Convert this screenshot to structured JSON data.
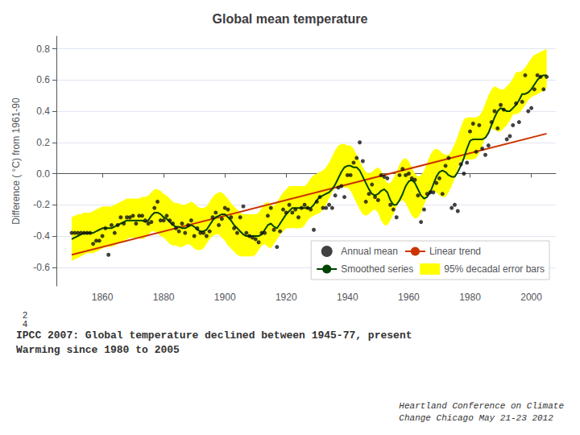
{
  "chart_data": {
    "type": "line",
    "title": "Global mean temperature",
    "ylabel": "Difference ( °C) from 1961-90",
    "xlim": [
      1845,
      2008
    ],
    "ylim": [
      -0.72,
      0.88
    ],
    "xticks": [
      1860,
      1880,
      1900,
      1920,
      1940,
      1960,
      1980,
      2000
    ],
    "yticks": [
      -0.6,
      -0.4,
      -0.2,
      {
        "value": 0,
        "label": "0.0"
      },
      0.2,
      0.4,
      0.6,
      0.8
    ],
    "grid": true,
    "legend": "lower right",
    "annotations": [
      {
        "text": "2\n4"
      },
      {
        "text": "IPCC 2007: Global temperature declined between 1945-77, present\nWarming since 1980 to 2005"
      },
      {
        "text": "Heartland Conference on Climate\nChange Chicago May 21-23 2012"
      }
    ],
    "x": [
      1850,
      1851,
      1852,
      1853,
      1854,
      1855,
      1856,
      1857,
      1858,
      1859,
      1860,
      1861,
      1862,
      1863,
      1864,
      1865,
      1866,
      1867,
      1868,
      1869,
      1870,
      1871,
      1872,
      1873,
      1874,
      1875,
      1876,
      1877,
      1878,
      1879,
      1880,
      1881,
      1882,
      1883,
      1884,
      1885,
      1886,
      1887,
      1888,
      1889,
      1890,
      1891,
      1892,
      1893,
      1894,
      1895,
      1896,
      1897,
      1898,
      1899,
      1900,
      1901,
      1902,
      1903,
      1904,
      1905,
      1906,
      1907,
      1908,
      1909,
      1910,
      1911,
      1912,
      1913,
      1914,
      1915,
      1916,
      1917,
      1918,
      1919,
      1920,
      1921,
      1922,
      1923,
      1924,
      1925,
      1926,
      1927,
      1928,
      1929,
      1930,
      1931,
      1932,
      1933,
      1934,
      1935,
      1936,
      1937,
      1938,
      1939,
      1940,
      1941,
      1942,
      1943,
      1944,
      1945,
      1946,
      1947,
      1948,
      1949,
      1950,
      1951,
      1952,
      1953,
      1954,
      1955,
      1956,
      1957,
      1958,
      1959,
      1960,
      1961,
      1962,
      1963,
      1964,
      1965,
      1966,
      1967,
      1968,
      1969,
      1970,
      1971,
      1972,
      1973,
      1974,
      1975,
      1976,
      1977,
      1978,
      1979,
      1980,
      1981,
      1982,
      1983,
      1984,
      1985,
      1986,
      1987,
      1988,
      1989,
      1990,
      1991,
      1992,
      1993,
      1994,
      1995,
      1996,
      1997,
      1998,
      1999,
      2000,
      2001,
      2002,
      2003,
      2004,
      2005
    ],
    "series": [
      {
        "name": "Annual mean",
        "type": "scatter",
        "marker": "circle",
        "color": "#111111",
        "values": [
          -0.38,
          -0.38,
          -0.38,
          -0.38,
          -0.38,
          -0.38,
          -0.38,
          -0.45,
          -0.43,
          -0.43,
          -0.4,
          -0.35,
          -0.52,
          -0.33,
          -0.38,
          -0.33,
          -0.28,
          -0.32,
          -0.28,
          -0.28,
          -0.27,
          -0.32,
          -0.27,
          -0.27,
          -0.3,
          -0.32,
          -0.31,
          -0.22,
          -0.18,
          -0.3,
          -0.3,
          -0.27,
          -0.3,
          -0.32,
          -0.35,
          -0.37,
          -0.32,
          -0.38,
          -0.33,
          -0.3,
          -0.4,
          -0.35,
          -0.38,
          -0.38,
          -0.4,
          -0.37,
          -0.28,
          -0.25,
          -0.33,
          -0.29,
          -0.22,
          -0.23,
          -0.28,
          -0.35,
          -0.38,
          -0.28,
          -0.21,
          -0.38,
          -0.4,
          -0.41,
          -0.42,
          -0.44,
          -0.38,
          -0.38,
          -0.27,
          -0.22,
          -0.36,
          -0.47,
          -0.37,
          -0.23,
          -0.25,
          -0.2,
          -0.25,
          -0.23,
          -0.28,
          -0.22,
          -0.2,
          -0.22,
          -0.23,
          -0.36,
          -0.18,
          -0.15,
          -0.22,
          -0.22,
          -0.2,
          -0.22,
          -0.14,
          -0.09,
          -0.08,
          -0.15,
          -0.01,
          -0.01,
          0.07,
          0.1,
          0.2,
          0.08,
          -0.18,
          -0.13,
          -0.07,
          -0.15,
          -0.17,
          -0.01,
          -0.02,
          -0.03,
          -0.2,
          -0.23,
          -0.28,
          -0.01,
          0.03,
          -0.01,
          0.0,
          -0.03,
          -0.04,
          -0.14,
          -0.31,
          -0.23,
          -0.13,
          -0.12,
          -0.12,
          -0.06,
          -0.03,
          -0.13,
          0.05,
          0.1,
          -0.22,
          -0.2,
          -0.24,
          0.06,
          0.0,
          0.07,
          0.27,
          0.32,
          0.14,
          0.31,
          0.16,
          0.12,
          0.18,
          0.33,
          0.4,
          0.29,
          0.44,
          0.41,
          0.22,
          0.24,
          0.31,
          0.45,
          0.33,
          0.46,
          0.63,
          0.4,
          0.42,
          0.54,
          0.63,
          0.62,
          0.54,
          0.62
        ]
      },
      {
        "name": "Linear trend",
        "type": "line",
        "line_style": "solid",
        "color": "#cc3300",
        "x": [
          1850,
          2005
        ],
        "values": [
          -0.5204,
          0.2562
        ]
      },
      {
        "name": "Smoothed series",
        "type": "line",
        "line_style": "solid",
        "color": "#004400",
        "values": [
          -0.42,
          -0.41,
          -0.4,
          -0.39,
          -0.38,
          -0.38,
          -0.38,
          -0.38,
          -0.37,
          -0.36,
          -0.35,
          -0.35,
          -0.35,
          -0.35,
          -0.34,
          -0.33,
          -0.32,
          -0.31,
          -0.3,
          -0.3,
          -0.3,
          -0.3,
          -0.3,
          -0.3,
          -0.31,
          -0.3,
          -0.27,
          -0.25,
          -0.25,
          -0.26,
          -0.28,
          -0.29,
          -0.31,
          -0.33,
          -0.34,
          -0.34,
          -0.35,
          -0.35,
          -0.34,
          -0.33,
          -0.34,
          -0.36,
          -0.37,
          -0.37,
          -0.36,
          -0.33,
          -0.3,
          -0.28,
          -0.27,
          -0.26,
          -0.26,
          -0.28,
          -0.3,
          -0.33,
          -0.35,
          -0.37,
          -0.39,
          -0.4,
          -0.4,
          -0.4,
          -0.4,
          -0.4,
          -0.39,
          -0.36,
          -0.33,
          -0.32,
          -0.34,
          -0.35,
          -0.32,
          -0.29,
          -0.26,
          -0.24,
          -0.22,
          -0.22,
          -0.22,
          -0.22,
          -0.22,
          -0.22,
          -0.22,
          -0.2,
          -0.17,
          -0.15,
          -0.14,
          -0.13,
          -0.12,
          -0.1,
          -0.07,
          -0.03,
          0.01,
          0.04,
          0.05,
          0.05,
          0.04,
          0.04,
          0.02,
          -0.02,
          -0.06,
          -0.1,
          -0.13,
          -0.14,
          -0.13,
          -0.11,
          -0.1,
          -0.12,
          -0.17,
          -0.2,
          -0.2,
          -0.17,
          -0.13,
          -0.08,
          -0.05,
          -0.04,
          -0.06,
          -0.1,
          -0.14,
          -0.16,
          -0.15,
          -0.12,
          -0.07,
          -0.02,
          0.01,
          0.02,
          0.01,
          -0.01,
          -0.02,
          -0.02,
          0.01,
          0.05,
          0.1,
          0.16,
          0.21,
          0.22,
          0.22,
          0.22,
          0.22,
          0.23,
          0.26,
          0.31,
          0.36,
          0.4,
          0.42,
          0.41,
          0.4,
          0.4,
          0.42,
          0.44,
          0.47,
          0.51,
          0.51,
          0.52,
          0.54,
          0.57,
          0.6,
          0.62,
          0.63,
          0.63
        ]
      },
      {
        "name": "95% decadal error bars",
        "type": "band",
        "color": "#ffff00",
        "upper": [
          -0.28,
          -0.27,
          -0.26,
          -0.26,
          -0.25,
          -0.25,
          -0.25,
          -0.24,
          -0.23,
          -0.22,
          -0.21,
          -0.21,
          -0.21,
          -0.21,
          -0.2,
          -0.19,
          -0.18,
          -0.17,
          -0.16,
          -0.16,
          -0.16,
          -0.16,
          -0.16,
          -0.15,
          -0.15,
          -0.14,
          -0.12,
          -0.1,
          -0.1,
          -0.11,
          -0.13,
          -0.14,
          -0.16,
          -0.18,
          -0.19,
          -0.19,
          -0.2,
          -0.2,
          -0.19,
          -0.18,
          -0.19,
          -0.21,
          -0.22,
          -0.22,
          -0.21,
          -0.18,
          -0.15,
          -0.13,
          -0.12,
          -0.12,
          -0.14,
          -0.16,
          -0.19,
          -0.21,
          -0.23,
          -0.25,
          -0.26,
          -0.26,
          -0.26,
          -0.26,
          -0.26,
          -0.25,
          -0.22,
          -0.19,
          -0.18,
          -0.2,
          -0.21,
          -0.18,
          -0.15,
          -0.12,
          -0.1,
          -0.08,
          -0.08,
          -0.08,
          -0.08,
          -0.08,
          -0.08,
          -0.06,
          -0.03,
          -0.01,
          0.0,
          0.01,
          0.02,
          0.04,
          0.07,
          0.11,
          0.15,
          0.18,
          0.19,
          0.19,
          0.18,
          0.18,
          0.16,
          0.12,
          0.08,
          0.04,
          0.01,
          0.0,
          0.01,
          0.03,
          0.04,
          0.02,
          -0.03,
          -0.06,
          -0.06,
          -0.03,
          0.01,
          0.06,
          0.09,
          0.1,
          0.08,
          0.04,
          0.0,
          -0.02,
          -0.01,
          0.02,
          0.07,
          0.12,
          0.15,
          0.16,
          0.15,
          0.13,
          0.12,
          0.12,
          0.15,
          0.19,
          0.24,
          0.3,
          0.35,
          0.36,
          0.36,
          0.36,
          0.36,
          0.37,
          0.4,
          0.45,
          0.5,
          0.54,
          0.56,
          0.55,
          0.54,
          0.54,
          0.56,
          0.58,
          0.61,
          0.65,
          0.65,
          0.66,
          0.68,
          0.71,
          0.74,
          0.76,
          0.77,
          0.78,
          0.79,
          0.8
        ],
        "lower": [
          -0.56,
          -0.55,
          -0.54,
          -0.53,
          -0.52,
          -0.51,
          -0.51,
          -0.51,
          -0.5,
          -0.49,
          -0.48,
          -0.47,
          -0.47,
          -0.47,
          -0.46,
          -0.45,
          -0.44,
          -0.43,
          -0.42,
          -0.41,
          -0.41,
          -0.41,
          -0.41,
          -0.42,
          -0.41,
          -0.39,
          -0.37,
          -0.37,
          -0.38,
          -0.4,
          -0.41,
          -0.43,
          -0.45,
          -0.46,
          -0.46,
          -0.47,
          -0.47,
          -0.46,
          -0.45,
          -0.46,
          -0.48,
          -0.49,
          -0.49,
          -0.48,
          -0.45,
          -0.42,
          -0.4,
          -0.39,
          -0.39,
          -0.41,
          -0.43,
          -0.46,
          -0.48,
          -0.5,
          -0.52,
          -0.53,
          -0.53,
          -0.53,
          -0.53,
          -0.53,
          -0.52,
          -0.49,
          -0.46,
          -0.45,
          -0.47,
          -0.48,
          -0.45,
          -0.42,
          -0.39,
          -0.37,
          -0.35,
          -0.35,
          -0.35,
          -0.35,
          -0.35,
          -0.35,
          -0.33,
          -0.3,
          -0.28,
          -0.27,
          -0.26,
          -0.25,
          -0.23,
          -0.2,
          -0.16,
          -0.12,
          -0.09,
          -0.08,
          -0.08,
          -0.09,
          -0.09,
          -0.11,
          -0.15,
          -0.19,
          -0.23,
          -0.26,
          -0.27,
          -0.26,
          -0.24,
          -0.23,
          -0.25,
          -0.3,
          -0.33,
          -0.33,
          -0.3,
          -0.26,
          -0.21,
          -0.18,
          -0.17,
          -0.19,
          -0.23,
          -0.27,
          -0.29,
          -0.28,
          -0.25,
          -0.2,
          -0.15,
          -0.12,
          -0.11,
          -0.12,
          -0.14,
          -0.15,
          -0.15,
          -0.12,
          -0.08,
          -0.03,
          0.03,
          0.08,
          0.09,
          0.09,
          0.09,
          0.09,
          0.1,
          0.13,
          0.18,
          0.23,
          0.27,
          0.29,
          0.28,
          0.27,
          0.27,
          0.29,
          0.31,
          0.34,
          0.38,
          0.38,
          0.39,
          0.41,
          0.44,
          0.47,
          0.49,
          0.5,
          0.51,
          0.52,
          0.53,
          0.55
        ]
      }
    ]
  }
}
